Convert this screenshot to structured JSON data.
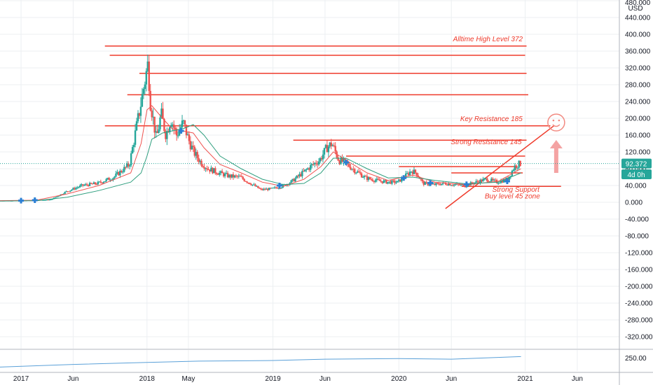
{
  "header": {
    "currency": "USD",
    "price_badge": "92.372",
    "interval_badge": "4d 0h"
  },
  "colors": {
    "up": "#26a69a",
    "down": "#ef5350",
    "annotation": "#ef3b2c",
    "ma_fast": "#ef5350",
    "ma_slow": "#2e9e7e",
    "grid": "#eceff2",
    "marker": "#2a7fd4",
    "badge_price": "#26a69a",
    "badge_interval": "#26a69a",
    "indicator": "#5aa0d8"
  },
  "chart_data": {
    "type": "line",
    "main_panel": {
      "ylim": [
        -360,
        480
      ],
      "y_ticks": [
        -320,
        -280,
        -240,
        -200,
        -160,
        -120,
        -80,
        -40,
        0,
        40,
        80,
        120,
        160,
        200,
        240,
        280,
        320,
        360,
        400,
        440,
        480
      ],
      "y_tick_labels": [
        "-320.000",
        "-280.000",
        "-240.000",
        "-200.000",
        "-160.000",
        "-120.000",
        "-80.000",
        "-40.000",
        "0.000",
        "40.000",
        "80.000",
        "120.000",
        "160.000",
        "200.000",
        "240.000",
        "280.000",
        "320.000",
        "360.000",
        "400.000",
        "440.000",
        "480.000"
      ],
      "grid": true,
      "current_price": 92.372,
      "price": {
        "x": [
          "2016-11-01",
          "2017-01-01",
          "2017-02-15",
          "2017-04-01",
          "2017-05-15",
          "2017-07-01",
          "2017-08-15",
          "2017-10-01",
          "2017-11-15",
          "2017-12-15",
          "2018-01-01",
          "2018-01-08",
          "2018-01-15",
          "2018-02-01",
          "2018-02-15",
          "2018-03-01",
          "2018-03-15",
          "2018-04-01",
          "2018-04-20",
          "2018-05-05",
          "2018-05-20",
          "2018-06-10",
          "2018-07-01",
          "2018-08-01",
          "2018-09-01",
          "2018-10-01",
          "2018-11-01",
          "2018-12-01",
          "2019-01-01",
          "2019-02-01",
          "2019-03-01",
          "2019-04-01",
          "2019-05-01",
          "2019-05-20",
          "2019-06-10",
          "2019-06-25",
          "2019-07-15",
          "2019-08-01",
          "2019-09-01",
          "2019-10-01",
          "2019-11-01",
          "2019-12-01",
          "2020-01-01",
          "2020-01-20",
          "2020-02-10",
          "2020-02-25",
          "2020-03-15",
          "2020-04-15",
          "2020-05-15",
          "2020-06-15",
          "2020-07-15",
          "2020-08-15",
          "2020-09-15",
          "2020-10-15",
          "2020-11-15",
          "2020-12-05",
          "2020-12-20"
        ],
        "y": [
          4,
          4,
          5,
          6,
          25,
          40,
          45,
          60,
          90,
          220,
          300,
          330,
          240,
          150,
          210,
          160,
          200,
          160,
          190,
          150,
          120,
          95,
          80,
          70,
          62,
          60,
          45,
          30,
          32,
          38,
          50,
          70,
          90,
          100,
          130,
          140,
          100,
          95,
          75,
          58,
          52,
          48,
          48,
          60,
          75,
          70,
          45,
          42,
          45,
          42,
          40,
          48,
          55,
          48,
          55,
          85,
          92
        ]
      },
      "ma_fast": {
        "x": [
          "2016-11-01",
          "2017-02-15",
          "2017-05-15",
          "2017-08-15",
          "2017-11-15",
          "2017-12-15",
          "2018-01-01",
          "2018-01-15",
          "2018-02-15",
          "2018-03-15",
          "2018-04-15",
          "2018-05-15",
          "2018-06-15",
          "2018-08-01",
          "2018-10-01",
          "2018-12-01",
          "2019-02-01",
          "2019-04-01",
          "2019-05-20",
          "2019-06-25",
          "2019-08-01",
          "2019-10-01",
          "2019-12-01",
          "2020-02-10",
          "2020-04-15",
          "2020-07-15",
          "2020-10-15",
          "2020-12-20"
        ],
        "y": [
          4,
          5,
          20,
          40,
          70,
          140,
          220,
          230,
          200,
          175,
          170,
          165,
          130,
          90,
          70,
          48,
          38,
          55,
          85,
          120,
          100,
          70,
          52,
          65,
          48,
          42,
          50,
          80
        ]
      },
      "ma_slow": {
        "x": [
          "2016-11-01",
          "2017-02-15",
          "2017-05-15",
          "2017-08-15",
          "2017-11-15",
          "2017-12-15",
          "2018-01-01",
          "2018-01-15",
          "2018-02-15",
          "2018-03-15",
          "2018-04-15",
          "2018-05-15",
          "2018-06-15",
          "2018-08-01",
          "2018-10-01",
          "2018-12-01",
          "2019-02-01",
          "2019-04-01",
          "2019-05-20",
          "2019-06-25",
          "2019-08-01",
          "2019-10-01",
          "2019-12-01",
          "2020-02-10",
          "2020-04-15",
          "2020-07-15",
          "2020-10-15",
          "2020-12-20"
        ],
        "y": [
          3,
          4,
          12,
          28,
          48,
          70,
          110,
          150,
          165,
          170,
          175,
          185,
          160,
          110,
          80,
          55,
          42,
          45,
          70,
          105,
          105,
          80,
          58,
          60,
          52,
          44,
          48,
          70
        ]
      },
      "markers": [
        {
          "x": "2017-01-01",
          "y": 4
        },
        {
          "x": "2017-02-10",
          "y": 5
        },
        {
          "x": "2018-04-10",
          "y": 170
        },
        {
          "x": "2019-01-20",
          "y": 40
        },
        {
          "x": "2019-08-01",
          "y": 95
        },
        {
          "x": "2020-01-15",
          "y": 58
        },
        {
          "x": "2020-04-01",
          "y": 46
        },
        {
          "x": "2020-07-15",
          "y": 43
        },
        {
          "x": "2020-11-10",
          "y": 50
        }
      ],
      "annotations": {
        "lines": [
          {
            "x1": "2017-09-01",
            "x2": "2021-01-05",
            "y": 372
          },
          {
            "x1": "2017-09-15",
            "x2": "2021-01-01",
            "y": 350
          },
          {
            "x1": "2017-12-10",
            "x2": "2021-01-05",
            "y": 307
          },
          {
            "x1": "2017-11-05",
            "x2": "2021-01-10",
            "y": 256
          },
          {
            "x1": "2017-09-01",
            "x2": "2021-03-15",
            "y": 182
          },
          {
            "x1": "2019-03-01",
            "x2": "2021-01-05",
            "y": 148
          },
          {
            "x1": "2019-08-01",
            "x2": "2021-01-01",
            "y": 110
          },
          {
            "x1": "2020-01-01",
            "x2": "2020-12-10",
            "y": 85
          },
          {
            "x1": "2020-06-01",
            "x2": "2020-12-25",
            "y": 70
          },
          {
            "x1": "2020-07-01",
            "x2": "2021-04-15",
            "y": 38
          },
          {
            "x1": "2020-05-15",
            "x2": "2021-03-25",
            "y": -15,
            "x2_y": 182
          }
        ],
        "labels": [
          {
            "text": "Alltime High Level 372",
            "x": "2020-09-15",
            "y": 383
          },
          {
            "text": "Key Resistance 185",
            "x": "2020-09-25",
            "y": 193
          },
          {
            "text": "Strong Resistance 145",
            "x": "2020-09-10",
            "y": 138
          },
          {
            "text": "Strong Support",
            "x": "2020-12-05",
            "y": 25
          },
          {
            "text": "Buy level 45 zone",
            "x": "2020-11-25",
            "y": 9
          }
        ],
        "arrow": {
          "x": "2021-04-01",
          "y_from": 70,
          "y_to": 145
        },
        "smiley": {
          "x": "2021-04-01",
          "y": 185
        }
      }
    },
    "x_axis": {
      "ticks": [
        {
          "label": "2017",
          "date": "2017-01-01"
        },
        {
          "label": "Jun",
          "date": "2017-06-01"
        },
        {
          "label": "2018",
          "date": "2018-01-01"
        },
        {
          "label": "May",
          "date": "2018-05-01"
        },
        {
          "label": "2019",
          "date": "2019-01-01"
        },
        {
          "label": "Jun",
          "date": "2019-06-01"
        },
        {
          "label": "2020",
          "date": "2020-01-01"
        },
        {
          "label": "Jun",
          "date": "2020-06-01"
        },
        {
          "label": "2021",
          "date": "2021-01-01"
        },
        {
          "label": "Jun",
          "date": "2021-06-01"
        }
      ]
    },
    "indicator_panel": {
      "tick_label": "250.00",
      "tick_value": 250,
      "ylim": [
        230,
        262
      ],
      "x": [
        "2016-11-01",
        "2017-06-01",
        "2018-01-01",
        "2018-06-01",
        "2019-01-01",
        "2019-06-01",
        "2020-01-01",
        "2020-06-01",
        "2020-12-20"
      ],
      "y": [
        236,
        240,
        243,
        245,
        246,
        248,
        249,
        248,
        252
      ]
    }
  }
}
